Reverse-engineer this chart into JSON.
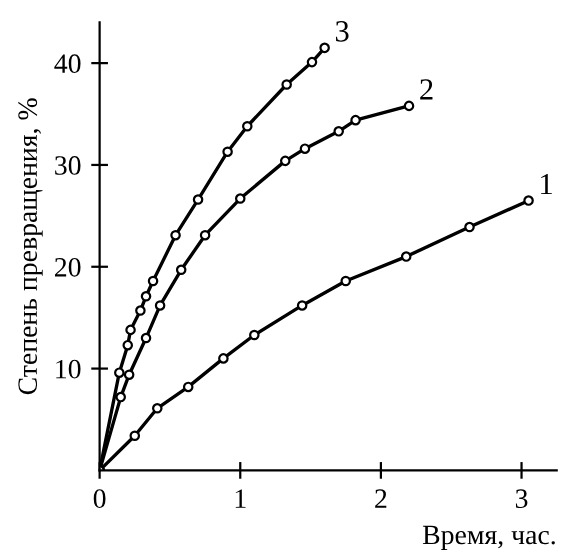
{
  "chart_data": {
    "type": "line",
    "xlabel": "Время, час.",
    "ylabel": "Степень превращения, %",
    "xlim": [
      0,
      3.25
    ],
    "ylim": [
      0,
      44
    ],
    "xticks": [
      0,
      1,
      2,
      3
    ],
    "yticks": [
      10,
      20,
      30,
      40
    ],
    "marker": "circle",
    "line_style": "solid",
    "legend": false,
    "grid": false,
    "series": [
      {
        "name": "1",
        "color": "#000000",
        "x": [
          0,
          0.25,
          0.41,
          0.63,
          0.88,
          1.1,
          1.44,
          1.75,
          2.18,
          2.63,
          3.05
        ],
        "values": [
          0,
          3.4,
          6.1,
          8.2,
          11.0,
          13.3,
          16.2,
          18.6,
          21.0,
          23.9,
          26.5
        ]
      },
      {
        "name": "2",
        "color": "#000000",
        "x": [
          0,
          0.15,
          0.21,
          0.33,
          0.43,
          0.58,
          0.75,
          1.0,
          1.32,
          1.46,
          1.7,
          1.82,
          2.2
        ],
        "values": [
          0,
          7.2,
          9.4,
          13.0,
          16.2,
          19.7,
          23.1,
          26.7,
          30.4,
          31.6,
          33.3,
          34.4,
          35.8
        ]
      },
      {
        "name": "3",
        "color": "#000000",
        "x": [
          0,
          0.14,
          0.2,
          0.22,
          0.29,
          0.33,
          0.38,
          0.54,
          0.7,
          0.91,
          1.05,
          1.33,
          1.51,
          1.6
        ],
        "values": [
          0,
          9.6,
          12.3,
          13.8,
          15.7,
          17.1,
          18.6,
          23.1,
          26.6,
          31.3,
          33.8,
          37.9,
          40.1,
          41.5
        ]
      }
    ]
  }
}
